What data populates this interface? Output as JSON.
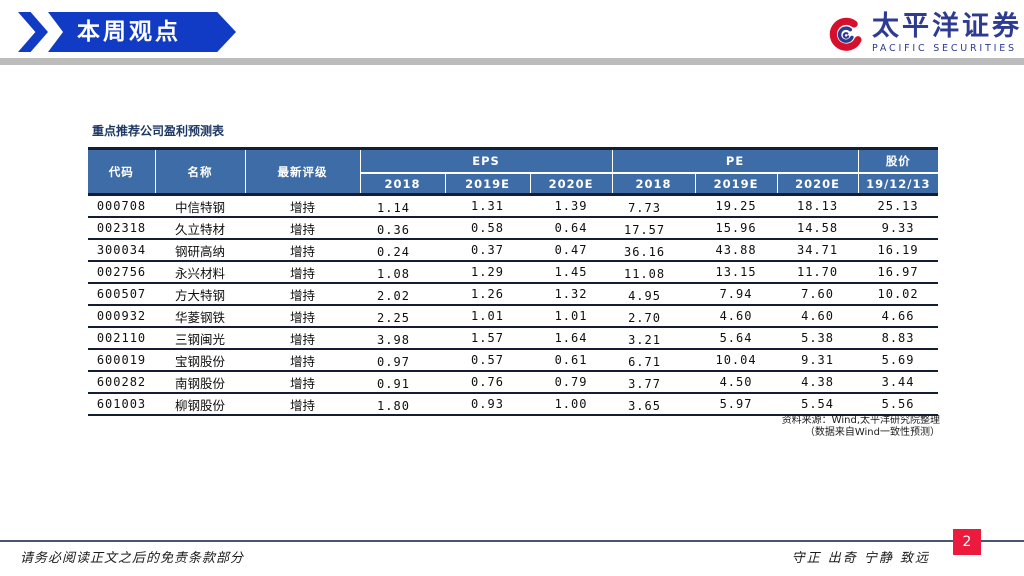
{
  "header": {
    "banner": "本周观点",
    "logo_cn": "太平洋证券",
    "logo_en": "PACIFIC SECURITIES"
  },
  "table": {
    "title": "重点推荐公司盈利预测表",
    "headers": {
      "code": "代码",
      "name": "名称",
      "rating": "最新评级",
      "eps_group": "EPS",
      "pe_group": "PE",
      "price_group": "股价",
      "eps_years": [
        "2018",
        "2019E",
        "2020E"
      ],
      "pe_years": [
        "2018",
        "2019E",
        "2020E"
      ],
      "price_date": "19/12/13"
    },
    "rows": [
      {
        "code": "000708",
        "name": "中信特钢",
        "rating": "增持",
        "eps": [
          "1.14",
          "1.31",
          "1.39"
        ],
        "pe": [
          "7.73",
          "19.25",
          "18.13"
        ],
        "price": "25.13"
      },
      {
        "code": "002318",
        "name": "久立特材",
        "rating": "增持",
        "eps": [
          "0.36",
          "0.58",
          "0.64"
        ],
        "pe": [
          "17.57",
          "15.96",
          "14.58"
        ],
        "price": "9.33"
      },
      {
        "code": "300034",
        "name": "钢研高纳",
        "rating": "增持",
        "eps": [
          "0.24",
          "0.37",
          "0.47"
        ],
        "pe": [
          "36.16",
          "43.88",
          "34.71"
        ],
        "price": "16.19"
      },
      {
        "code": "002756",
        "name": "永兴材料",
        "rating": "增持",
        "eps": [
          "1.08",
          "1.29",
          "1.45"
        ],
        "pe": [
          "11.08",
          "13.15",
          "11.70"
        ],
        "price": "16.97"
      },
      {
        "code": "600507",
        "name": "方大特钢",
        "rating": "增持",
        "eps": [
          "2.02",
          "1.26",
          "1.32"
        ],
        "pe": [
          "4.95",
          "7.94",
          "7.60"
        ],
        "price": "10.02"
      },
      {
        "code": "000932",
        "name": "华菱钢铁",
        "rating": "增持",
        "eps": [
          "2.25",
          "1.01",
          "1.01"
        ],
        "pe": [
          "2.70",
          "4.60",
          "4.60"
        ],
        "price": "4.66"
      },
      {
        "code": "002110",
        "name": "三钢闽光",
        "rating": "增持",
        "eps": [
          "3.98",
          "1.57",
          "1.64"
        ],
        "pe": [
          "3.21",
          "5.64",
          "5.38"
        ],
        "price": "8.83"
      },
      {
        "code": "600019",
        "name": "宝钢股份",
        "rating": "增持",
        "eps": [
          "0.97",
          "0.57",
          "0.61"
        ],
        "pe": [
          "6.71",
          "10.04",
          "9.31"
        ],
        "price": "5.69"
      },
      {
        "code": "600282",
        "name": "南钢股份",
        "rating": "增持",
        "eps": [
          "0.91",
          "0.76",
          "0.79"
        ],
        "pe": [
          "3.77",
          "4.50",
          "4.38"
        ],
        "price": "3.44"
      },
      {
        "code": "601003",
        "name": "柳钢股份",
        "rating": "增持",
        "eps": [
          "1.80",
          "0.93",
          "1.00"
        ],
        "pe": [
          "3.65",
          "5.97",
          "5.54"
        ],
        "price": "5.56"
      }
    ],
    "source_line1": "资料来源：Wind,太平洋研究院整理",
    "source_line2": "（数据来自Wind一致性预测）"
  },
  "footer": {
    "disclaimer": "请务必阅读正文之后的免责条款部分",
    "motto": "守正 出奇 宁静 致远",
    "page": "2"
  },
  "colors": {
    "banner_blue": "#113bc4",
    "table_header_blue": "#3e6ca6",
    "dark_border": "#151d33",
    "logo_blue": "#2e3b92",
    "page_red": "#ec1b3d",
    "footer_line": "#4a5574",
    "gray_bar": "#bcbcbc"
  }
}
